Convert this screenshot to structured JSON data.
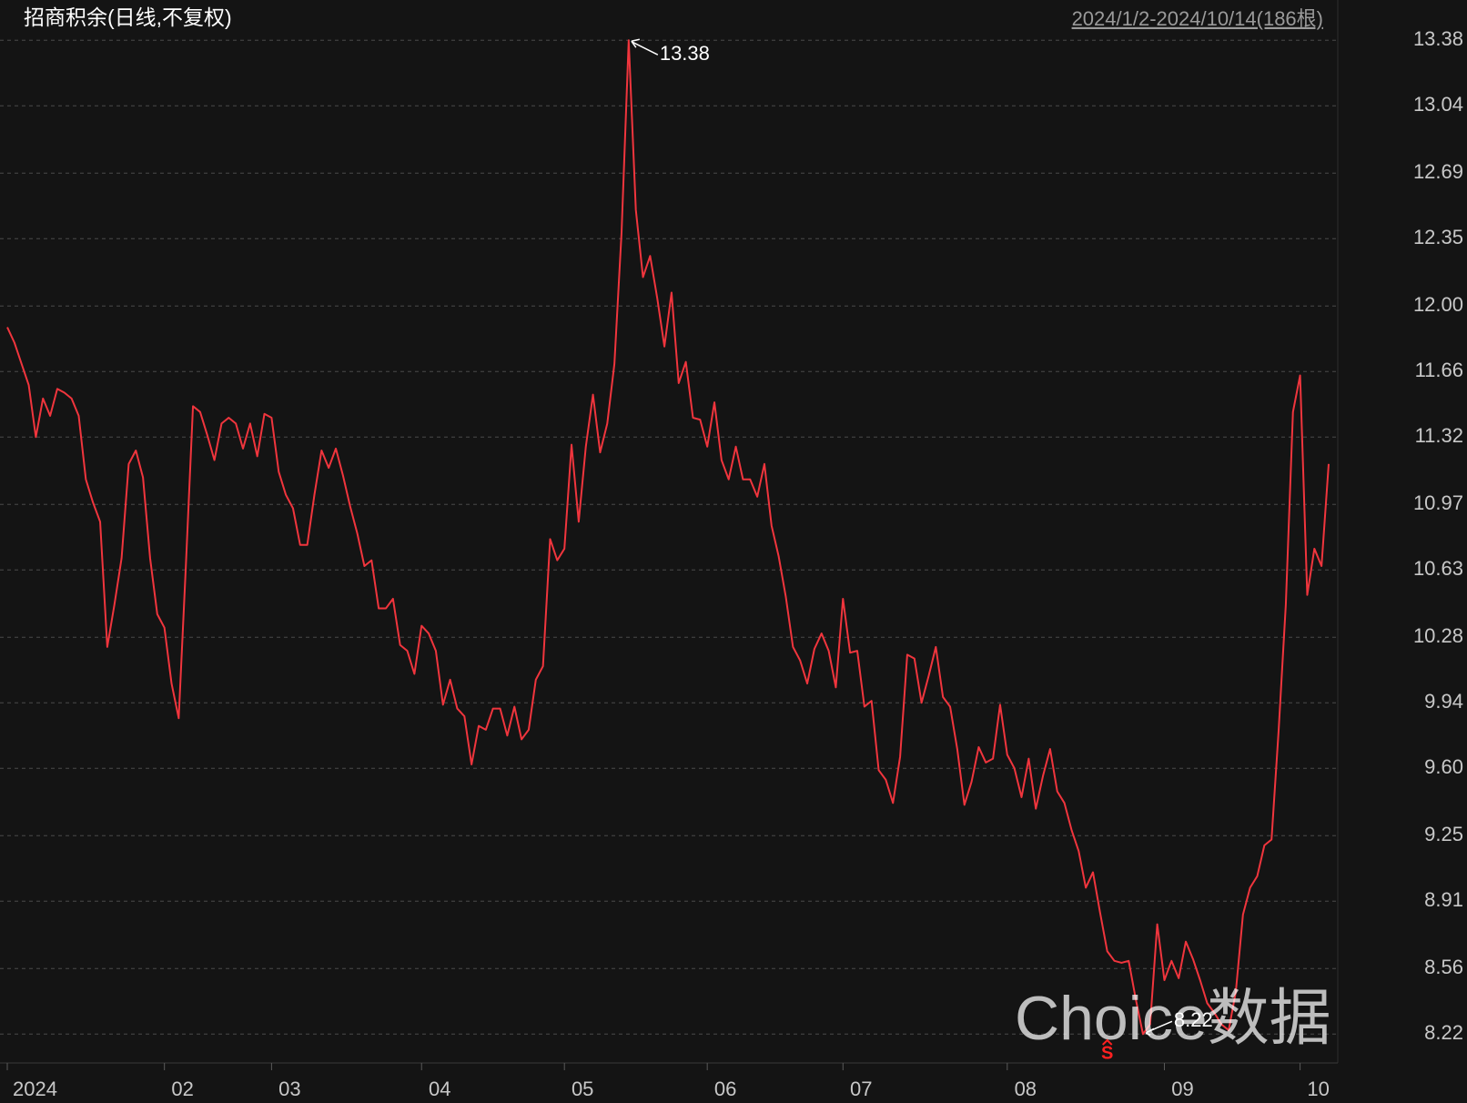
{
  "chart_data": {
    "type": "line",
    "title": "招商积余(日线,不复权)",
    "range_label": "2024/1/2-2024/10/14(186根)",
    "watermark": "Choice数据",
    "series": [
      {
        "name": "招商积余",
        "color": "#f0353d",
        "values": [
          11.89,
          11.81,
          11.7,
          11.59,
          11.32,
          11.52,
          11.43,
          11.57,
          11.55,
          11.52,
          11.43,
          11.1,
          10.98,
          10.88,
          10.23,
          10.45,
          10.69,
          11.18,
          11.25,
          11.11,
          10.69,
          10.4,
          10.33,
          10.04,
          9.86,
          10.65,
          11.48,
          11.45,
          11.33,
          11.2,
          11.39,
          11.42,
          11.39,
          11.26,
          11.39,
          11.22,
          11.44,
          11.42,
          11.14,
          11.02,
          10.95,
          10.76,
          10.76,
          11.02,
          11.25,
          11.16,
          11.26,
          11.12,
          10.96,
          10.82,
          10.65,
          10.68,
          10.43,
          10.43,
          10.48,
          10.24,
          10.21,
          10.09,
          10.34,
          10.3,
          10.21,
          9.93,
          10.06,
          9.91,
          9.87,
          9.62,
          9.82,
          9.8,
          9.91,
          9.91,
          9.77,
          9.92,
          9.75,
          9.8,
          10.06,
          10.13,
          10.79,
          10.68,
          10.74,
          11.28,
          10.88,
          11.27,
          11.54,
          11.24,
          11.39,
          11.7,
          12.38,
          13.38,
          12.5,
          12.15,
          12.26,
          12.04,
          11.79,
          12.07,
          11.6,
          11.71,
          11.42,
          11.41,
          11.27,
          11.5,
          11.2,
          11.1,
          11.27,
          11.1,
          11.1,
          11.01,
          11.18,
          10.86,
          10.7,
          10.49,
          10.23,
          10.16,
          10.04,
          10.22,
          10.3,
          10.21,
          10.02,
          10.48,
          10.2,
          10.21,
          9.92,
          9.95,
          9.59,
          9.54,
          9.42,
          9.66,
          10.19,
          10.17,
          9.94,
          10.08,
          10.23,
          9.97,
          9.92,
          9.7,
          9.41,
          9.53,
          9.71,
          9.63,
          9.65,
          9.93,
          9.67,
          9.6,
          9.45,
          9.65,
          9.39,
          9.56,
          9.7,
          9.48,
          9.42,
          9.28,
          9.17,
          8.98,
          9.06,
          8.85,
          8.65,
          8.6,
          8.59,
          8.6,
          8.4,
          8.22,
          8.27,
          8.79,
          8.5,
          8.6,
          8.51,
          8.7,
          8.61,
          8.5,
          8.38,
          8.33,
          8.27,
          8.24,
          8.44,
          8.84,
          8.98,
          9.04,
          9.2,
          9.23,
          9.8,
          10.45,
          11.45,
          11.64,
          10.5,
          10.74,
          10.65,
          11.18
        ]
      }
    ],
    "xlim": [
      0,
      185
    ],
    "xticks": [
      {
        "value": 0,
        "label": "2024"
      },
      {
        "value": 22,
        "label": "02"
      },
      {
        "value": 37,
        "label": "03"
      },
      {
        "value": 58,
        "label": "04"
      },
      {
        "value": 78,
        "label": "05"
      },
      {
        "value": 98,
        "label": "06"
      },
      {
        "value": 117,
        "label": "07"
      },
      {
        "value": 140,
        "label": "08"
      },
      {
        "value": 162,
        "label": "09"
      },
      {
        "value": 181,
        "label": "10"
      }
    ],
    "ylim": [
      8.07,
      13.4
    ],
    "yticks": [
      8.22,
      8.56,
      8.91,
      9.25,
      {
        "value": 9.6,
        "label": "9.60"
      },
      9.94,
      10.28,
      10.63,
      10.97,
      11.32,
      11.66,
      {
        "value": 12.0,
        "label": "12.00"
      },
      12.35,
      12.69,
      13.04,
      13.38
    ],
    "grid": true,
    "annotations": [
      {
        "index": 87,
        "label": "13.38"
      },
      {
        "index": 159,
        "label": "8.22"
      }
    ],
    "markers": [
      {
        "index": 154,
        "label": "S",
        "color": "#ff2020"
      }
    ]
  }
}
